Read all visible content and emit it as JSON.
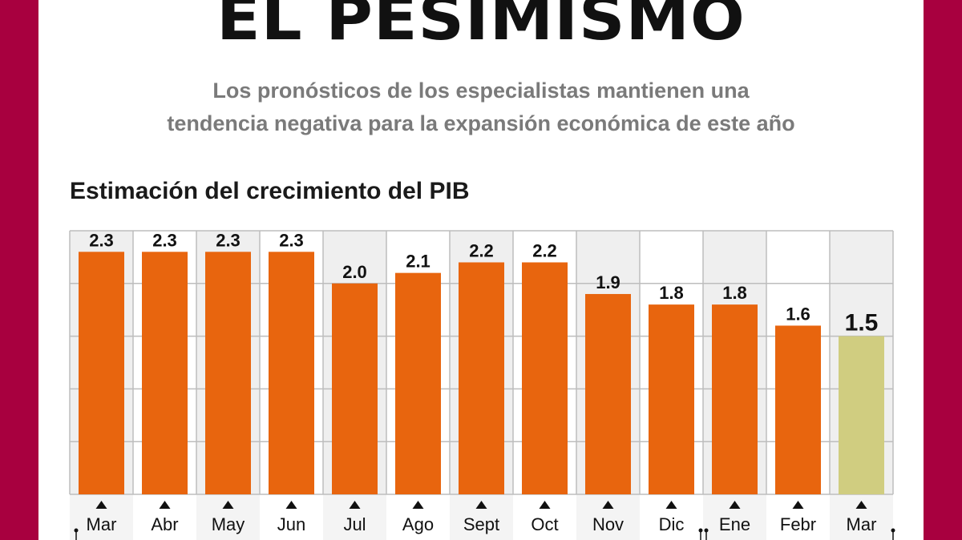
{
  "header": {
    "title": "EL PESIMISMO",
    "subtitle_line1": "Los pronósticos de los especialistas mantienen una",
    "subtitle_line2": "tendencia negativa para la expansión económica de este año"
  },
  "colors": {
    "frame": "#a8003f",
    "bar": "#e8650e",
    "highlight": "#d0cd80",
    "grid": "#bdbdbd",
    "band": "#efefef"
  },
  "chart_data": {
    "type": "bar",
    "title": "Estimación del crecimiento del PIB",
    "categories": [
      "Mar",
      "Abr",
      "May",
      "Jun",
      "Jul",
      "Ago",
      "Sept",
      "Oct",
      "Nov",
      "Dic",
      "Ene",
      "Febr",
      "Mar"
    ],
    "values": [
      2.3,
      2.3,
      2.3,
      2.3,
      2.0,
      2.1,
      2.2,
      2.2,
      1.9,
      1.8,
      1.8,
      1.6,
      1.5
    ],
    "labels": [
      "2.3",
      "2.3",
      "2.3",
      "2.3",
      "2.0",
      "2.1",
      "2.2",
      "2.2",
      "1.9",
      "1.8",
      "1.8",
      "1.6",
      "1.5"
    ],
    "highlight_index": 12,
    "ylim": [
      0,
      2.5
    ],
    "grid_step": 0.5,
    "grid": true,
    "y_tick_labels": false
  }
}
